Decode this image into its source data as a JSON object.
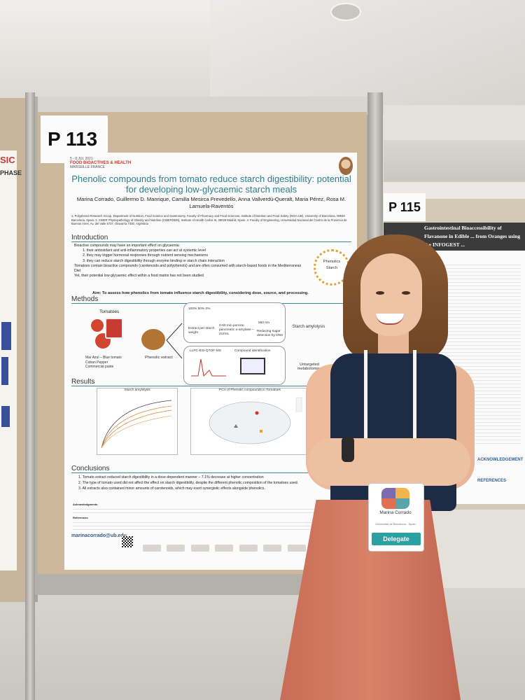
{
  "board_main": {
    "id": "P 113"
  },
  "board_right": {
    "id": "P 115",
    "poster_title": "Gastrointestinal Bioaccessibility of Flavanone in Edible ... from Oranges using the INFOGEST ...",
    "ack_label": "ACKNOWLEDGEMENT",
    "ref_label": "REFERENCES"
  },
  "left_poster": {
    "heading_fragment_1": "SIC",
    "heading_fragment_2": "PHASE"
  },
  "poster": {
    "conference": {
      "name": "FOOD BIOACTIVES & HEALTH",
      "dates": "5 - 8 JUL 2021",
      "city": "MARSEILLE FRANCE"
    },
    "title": "Phenolic compounds from tomato reduce starch digestibility: potential for developing low-glycaemic starch meals",
    "authors": "Marina Corrado, Guillermo D. Manrique, Camilla Mesirca Prevedello, Anna Vallverdú-Queralt, Maria Pérez, Rosa M. Lamuela-Raventós",
    "affiliations": "1. Polyphenol Research Group, Department of Nutrition, Food Science and Gastronomy, Faculty of Pharmacy and Food Sciences, Institute of Nutrition and Food Safety (INSA-UB), University of Barcelona, 08028 Barcelona, Spain. 2. CIBER Physiopathology of Obesity and Nutrition (CIBEROBN), Institute of Health Carlos III, 28029 Madrid, Spain. 3. Faculty of Engineering, Universidad Nacional del Centro de la Provincia de Buenos Aires, Av. del Valle 5737, Olavarría 7400, Argentina",
    "intro": {
      "heading": "Introduction",
      "lines": [
        "Bioactive compounds may have an important effect on glycaemia:",
        "1. their antioxidant and anti-inflammatory properties can act at systemic level",
        "2. they may trigger hormonal responses through nutrient sensing mechanisms",
        "3. they can reduce starch digestibility through enzyme binding or starch chain interaction",
        "Tomatoes contain bioactive compounds (carotenoids and polyphenols) and are often consumed with starch-based foods in the Mediterranean Diet",
        "Yet, their potential low glycaemic effect within a food matrix has not been studied"
      ],
      "aim": "Aim: To assess how phenolics from tomato influence starch digestibility, considering dose, source, and processing.",
      "circle_top": "Phenolics",
      "circle_bottom": "Starch"
    },
    "methods": {
      "heading": "Methods",
      "tomatoes_label": "Tomatoes",
      "tomato_types": [
        "Mar Azul – Blue tomato",
        "Cuban Pepper",
        "Commercial paste"
      ],
      "phenolic_label": "Phenolic extract",
      "box1": [
        "100% 50% 0%",
        "Extract per starch weight",
        "0-60 min porcine pancreatic α-amylase – 2U/mL",
        "560 nm",
        "Reducing sugar detection by DNS"
      ],
      "box2": [
        "LLPC-ESI-QTOF-MS",
        "Compound identification"
      ],
      "starch_label": "Starch amylolysis",
      "untargeted_label": "Untargeted metabolomics"
    },
    "results": {
      "heading": "Results",
      "chart1_title": "Starch amylolysis",
      "chart2_title": "PCA of Phenolic compounds in Tomatoes"
    },
    "conclusions": {
      "heading": "Conclusions",
      "lines": [
        "1. Tomato extract reduced starch digestibility in a dose-dependent manner – 7.1% decrease at higher concentration",
        "2. The type of tomato used did not affect the effect on starch digestibility, despite the different phenolic composition of the tomatoes used.",
        "3. All extracts also contained minor amounts of carotenoids, which may exert synergistic effects alongside phenolics."
      ]
    },
    "ack_heading": "Acknowledgments",
    "ref_heading": "References",
    "contact": "marinacorrado@ub.edu"
  },
  "badge": {
    "name": "Marina Corrado",
    "institution": "Universitat de Barcelona · Spain",
    "role": "Delegate"
  },
  "colors": {
    "title_teal": "#2e7d8a",
    "badge_teal": "#2aa0a3",
    "skirt": "#d27a63",
    "top": "#1e2b45"
  }
}
